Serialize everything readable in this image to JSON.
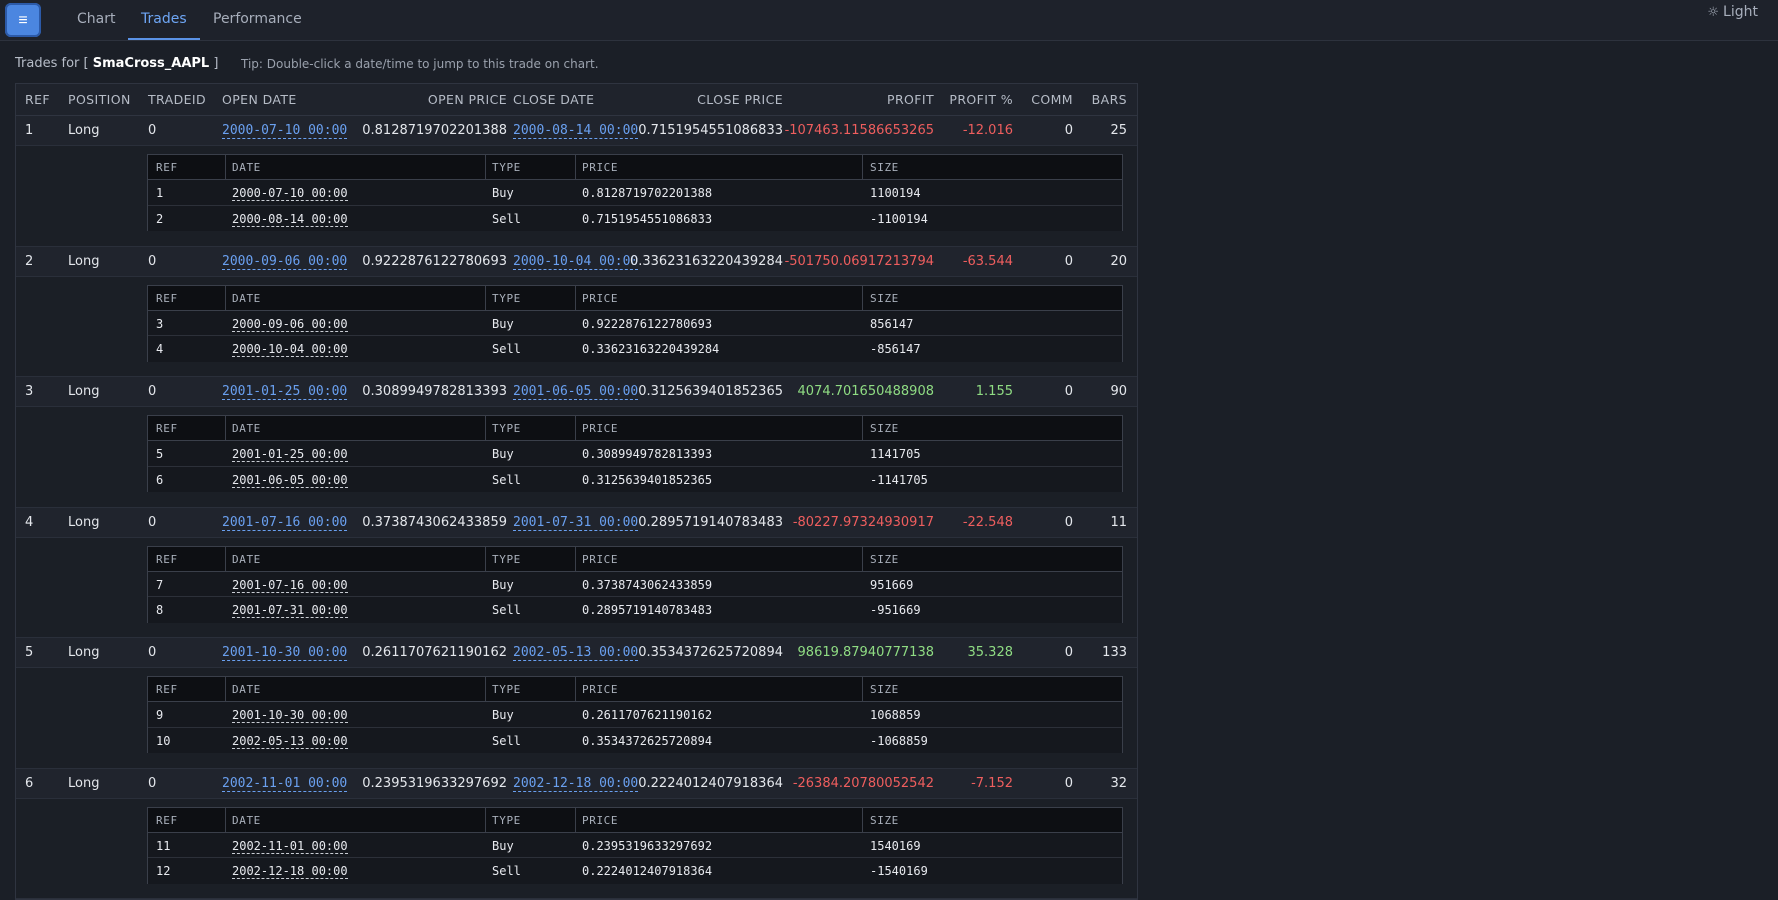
{
  "nav": {
    "menu_icon": "≡",
    "tabs": [
      "Chart",
      "Trades",
      "Performance"
    ],
    "active_tab": "Trades",
    "theme_icon": "☼",
    "theme_label": "Light"
  },
  "header": {
    "prefix": "Trades for [ ",
    "strategy": "SmaCross_AAPL",
    "suffix": " ]",
    "tip": "Tip: Double-click a date/time to jump to this trade on chart."
  },
  "columns": [
    "REF",
    "POSITION",
    "TRADEID",
    "OPEN DATE",
    "OPEN PRICE",
    "CLOSE DATE",
    "CLOSE PRICE",
    "PROFIT",
    "PROFIT %",
    "COMM",
    "BARS"
  ],
  "sub_columns": [
    "REF",
    "DATE",
    "TYPE",
    "PRICE",
    "SIZE"
  ],
  "trades": [
    {
      "ref": "1",
      "position": "Long",
      "tradeid": "0",
      "open_date": "2000-07-10 00:00",
      "open_price": "0.8128719702201388",
      "close_date": "2000-08-14 00:00",
      "close_price": "0.7151954551086833",
      "profit": "-107463.11586653265",
      "profit_pct": "-12.016",
      "comm": "0",
      "bars": "25",
      "sign": "neg",
      "orders": [
        {
          "ref": "1",
          "date": "2000-07-10 00:00",
          "type": "Buy",
          "price": "0.8128719702201388",
          "size": "1100194"
        },
        {
          "ref": "2",
          "date": "2000-08-14 00:00",
          "type": "Sell",
          "price": "0.7151954551086833",
          "size": "-1100194"
        }
      ]
    },
    {
      "ref": "2",
      "position": "Long",
      "tradeid": "0",
      "open_date": "2000-09-06 00:00",
      "open_price": "0.9222876122780693",
      "close_date": "2000-10-04 00:00",
      "close_price": "0.33623163220439284",
      "profit": "-501750.06917213794",
      "profit_pct": "-63.544",
      "comm": "0",
      "bars": "20",
      "sign": "neg",
      "orders": [
        {
          "ref": "3",
          "date": "2000-09-06 00:00",
          "type": "Buy",
          "price": "0.9222876122780693",
          "size": "856147"
        },
        {
          "ref": "4",
          "date": "2000-10-04 00:00",
          "type": "Sell",
          "price": "0.33623163220439284",
          "size": "-856147"
        }
      ]
    },
    {
      "ref": "3",
      "position": "Long",
      "tradeid": "0",
      "open_date": "2001-01-25 00:00",
      "open_price": "0.3089949782813393",
      "close_date": "2001-06-05 00:00",
      "close_price": "0.3125639401852365",
      "profit": "4074.701650488908",
      "profit_pct": "1.155",
      "comm": "0",
      "bars": "90",
      "sign": "pos",
      "orders": [
        {
          "ref": "5",
          "date": "2001-01-25 00:00",
          "type": "Buy",
          "price": "0.3089949782813393",
          "size": "1141705"
        },
        {
          "ref": "6",
          "date": "2001-06-05 00:00",
          "type": "Sell",
          "price": "0.3125639401852365",
          "size": "-1141705"
        }
      ]
    },
    {
      "ref": "4",
      "position": "Long",
      "tradeid": "0",
      "open_date": "2001-07-16 00:00",
      "open_price": "0.3738743062433859",
      "close_date": "2001-07-31 00:00",
      "close_price": "0.2895719140783483",
      "profit": "-80227.97324930917",
      "profit_pct": "-22.548",
      "comm": "0",
      "bars": "11",
      "sign": "neg",
      "orders": [
        {
          "ref": "7",
          "date": "2001-07-16 00:00",
          "type": "Buy",
          "price": "0.3738743062433859",
          "size": "951669"
        },
        {
          "ref": "8",
          "date": "2001-07-31 00:00",
          "type": "Sell",
          "price": "0.2895719140783483",
          "size": "-951669"
        }
      ]
    },
    {
      "ref": "5",
      "position": "Long",
      "tradeid": "0",
      "open_date": "2001-10-30 00:00",
      "open_price": "0.2611707621190162",
      "close_date": "2002-05-13 00:00",
      "close_price": "0.3534372625720894",
      "profit": "98619.87940777138",
      "profit_pct": "35.328",
      "comm": "0",
      "bars": "133",
      "sign": "pos",
      "orders": [
        {
          "ref": "9",
          "date": "2001-10-30 00:00",
          "type": "Buy",
          "price": "0.2611707621190162",
          "size": "1068859"
        },
        {
          "ref": "10",
          "date": "2002-05-13 00:00",
          "type": "Sell",
          "price": "0.3534372625720894",
          "size": "-1068859"
        }
      ]
    },
    {
      "ref": "6",
      "position": "Long",
      "tradeid": "0",
      "open_date": "2002-11-01 00:00",
      "open_price": "0.2395319633297692",
      "close_date": "2002-12-18 00:00",
      "close_price": "0.2224012407918364",
      "profit": "-26384.20780052542",
      "profit_pct": "-7.152",
      "comm": "0",
      "bars": "32",
      "sign": "neg",
      "orders": [
        {
          "ref": "11",
          "date": "2002-11-01 00:00",
          "type": "Buy",
          "price": "0.2395319633297692",
          "size": "1540169"
        },
        {
          "ref": "12",
          "date": "2002-12-18 00:00",
          "type": "Sell",
          "price": "0.2224012407918364",
          "size": "-1540169"
        }
      ]
    }
  ],
  "colors": {
    "negative": "#ef5e5e",
    "positive": "#8fdc83",
    "link": "#6aa0f0",
    "accent": "#4b86e0"
  }
}
